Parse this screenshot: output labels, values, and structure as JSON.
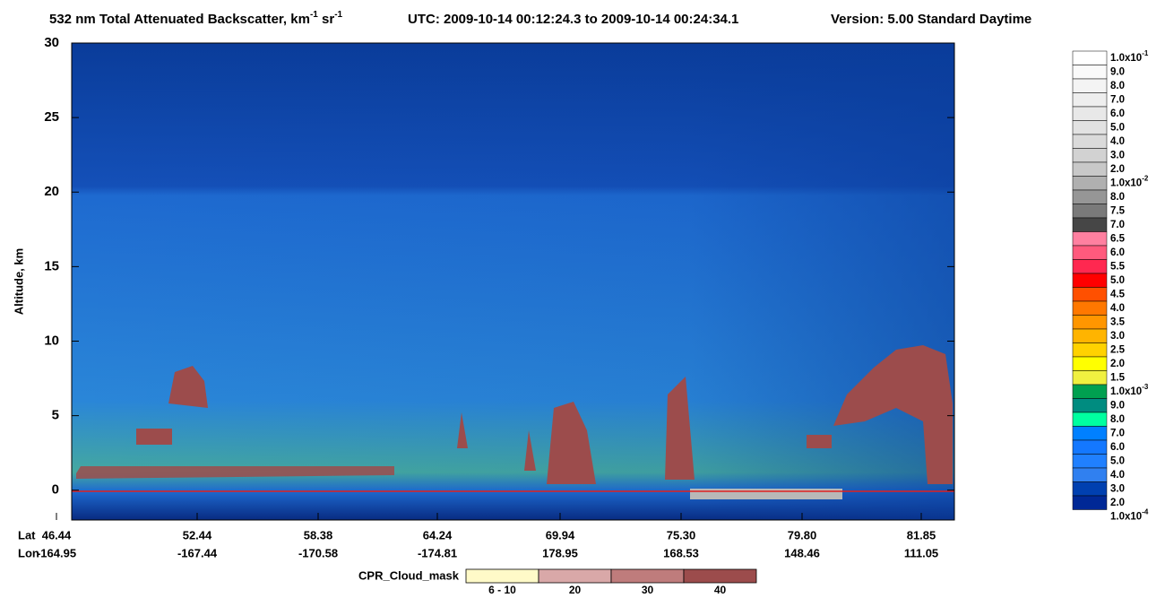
{
  "chart_data": {
    "type": "heatmap",
    "title_parts": [
      "532 nm Total Attenuated Backscatter, km",
      "-1",
      " sr",
      "-1"
    ],
    "utc": "UTC:  2009-10-14 00:12:24.3  to  2009-10-14 00:24:34.1",
    "version": "Version: 5.00  Standard  Daytime",
    "ylabel": "Altitude, km",
    "ylim": [
      -2,
      30
    ],
    "yticks": [
      0,
      5,
      10,
      15,
      20,
      25,
      30
    ],
    "lat_title": "Lat",
    "lon_title": "Lon",
    "lat_labels": [
      "46.44",
      "52.44",
      "58.38",
      "64.24",
      "69.94",
      "75.30",
      "79.80",
      "81.85"
    ],
    "lon_labels": [
      "-164.95",
      "-167.44",
      "-170.58",
      "-174.81",
      "178.95",
      "168.53",
      "148.46",
      "111.05"
    ],
    "colorbar": {
      "labels": [
        {
          "base": "1.0x10",
          "exp": "-1"
        },
        "9.0",
        "8.0",
        "7.0",
        "6.0",
        "5.0",
        "4.0",
        "3.0",
        "2.0",
        {
          "base": "1.0x10",
          "exp": "-2"
        },
        "8.0",
        "7.5",
        "7.0",
        "6.5",
        "6.0",
        "5.5",
        "5.0",
        "4.5",
        "4.0",
        "3.5",
        "3.0",
        "2.5",
        "2.0",
        "1.5",
        {
          "base": "1.0x10",
          "exp": "-3"
        },
        "9.0",
        "8.0",
        "7.0",
        "6.0",
        "5.0",
        "4.0",
        "3.0",
        "2.0",
        {
          "base": "1.0x10",
          "exp": "-4"
        }
      ],
      "colors": [
        "#ffffff",
        "#fafafa",
        "#f4f4f4",
        "#eeeeee",
        "#e8e8e8",
        "#e2e2e2",
        "#dadada",
        "#d2d2d2",
        "#c8c8c8",
        "#b0b0b0",
        "#969696",
        "#7a7a7a",
        "#464646",
        "#ff80a0",
        "#ff5a7d",
        "#ff2850",
        "#ff0000",
        "#ff5000",
        "#ff7800",
        "#ff9600",
        "#ffb400",
        "#ffd200",
        "#ffff00",
        "#f0f040",
        "#00a050",
        "#008c80",
        "#00ffa0",
        "#0080ff",
        "#1478ff",
        "#2080ff",
        "#3080f0",
        "#0040b0",
        "#002896"
      ]
    },
    "cpr_legend": {
      "title": "CPR_Cloud_mask",
      "labels": [
        "6 - 10",
        "20",
        "30",
        "40"
      ],
      "colors": [
        "#fffac8",
        "#d9a8a8",
        "#bf7c7c",
        "#9c4c4c"
      ]
    }
  }
}
